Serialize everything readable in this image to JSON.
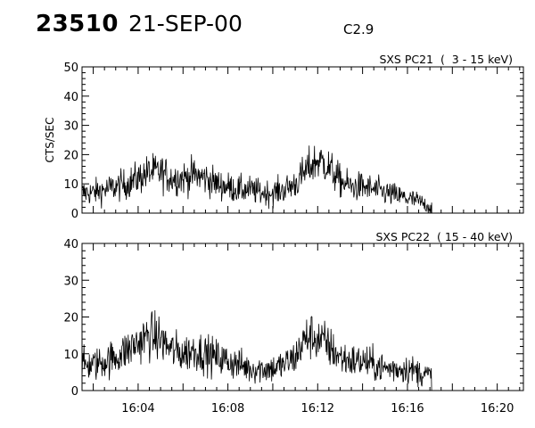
{
  "header": {
    "event_id": "23510",
    "date": "21-SEP-00",
    "flare_class": "C2.9"
  },
  "chart_data": [
    {
      "type": "line",
      "title": "SXS PC21  (  3 - 15 keV)",
      "ylabel": "CTS/SEC",
      "xlabel": "",
      "xlim": [
        "16:01:30",
        "16:21:10"
      ],
      "ylim": [
        0,
        50
      ],
      "yticks": [
        "0",
        "10",
        "20",
        "30",
        "40",
        "50"
      ],
      "xticks": [
        "16:04",
        "16:08",
        "16:12",
        "16:16",
        "16:20"
      ],
      "data_end": "16:17:05",
      "series": [
        {
          "x": [
            "16:01:30",
            "16:02:00",
            "16:02:30",
            "16:03:00",
            "16:03:30",
            "16:04:00",
            "16:04:30",
            "16:05:00",
            "16:05:30",
            "16:06:00",
            "16:06:30",
            "16:07:00",
            "16:07:30",
            "16:08:00",
            "16:08:30",
            "16:09:00",
            "16:09:30",
            "16:10:00",
            "16:10:30",
            "16:11:00",
            "16:11:20",
            "16:11:40",
            "16:12:00",
            "16:12:20",
            "16:12:40",
            "16:13:00",
            "16:13:30",
            "16:14:00",
            "16:14:30",
            "16:15:00",
            "16:15:30",
            "16:16:00",
            "16:16:30",
            "16:17:00"
          ],
          "y": [
            7,
            7,
            8,
            9,
            10,
            12,
            14,
            14,
            12,
            12,
            13,
            12,
            10,
            9,
            8,
            8,
            7,
            7,
            8,
            10,
            13,
            16,
            18,
            17,
            14,
            11,
            9,
            9,
            8,
            7,
            6,
            5,
            4,
            2
          ]
        }
      ]
    },
    {
      "type": "line",
      "title": "SXS PC22  ( 15 - 40 keV)",
      "ylabel": "",
      "xlabel": "",
      "xlim": [
        "16:01:30",
        "16:21:10"
      ],
      "ylim": [
        0,
        40
      ],
      "yticks": [
        "0",
        "10",
        "20",
        "30",
        "40"
      ],
      "xticks": [
        "16:04",
        "16:08",
        "16:12",
        "16:16",
        "16:20"
      ],
      "data_end": "16:17:05",
      "series": [
        {
          "x": [
            "16:01:30",
            "16:02:00",
            "16:02:30",
            "16:03:00",
            "16:03:30",
            "16:04:00",
            "16:04:30",
            "16:05:00",
            "16:05:30",
            "16:06:00",
            "16:06:30",
            "16:07:00",
            "16:07:30",
            "16:08:00",
            "16:08:30",
            "16:09:00",
            "16:09:30",
            "16:10:00",
            "16:10:30",
            "16:11:00",
            "16:11:20",
            "16:11:40",
            "16:12:00",
            "16:12:20",
            "16:12:40",
            "16:13:00",
            "16:13:30",
            "16:14:00",
            "16:14:30",
            "16:15:00",
            "16:15:30",
            "16:16:00",
            "16:16:30",
            "16:17:00"
          ],
          "y": [
            7,
            7,
            8,
            9,
            11,
            13,
            15,
            14,
            11,
            10,
            11,
            10,
            9,
            8,
            7,
            6,
            6,
            6,
            7,
            9,
            13,
            15,
            14,
            13,
            11,
            9,
            8,
            8,
            7,
            6,
            6,
            6,
            5,
            4
          ]
        }
      ]
    }
  ]
}
